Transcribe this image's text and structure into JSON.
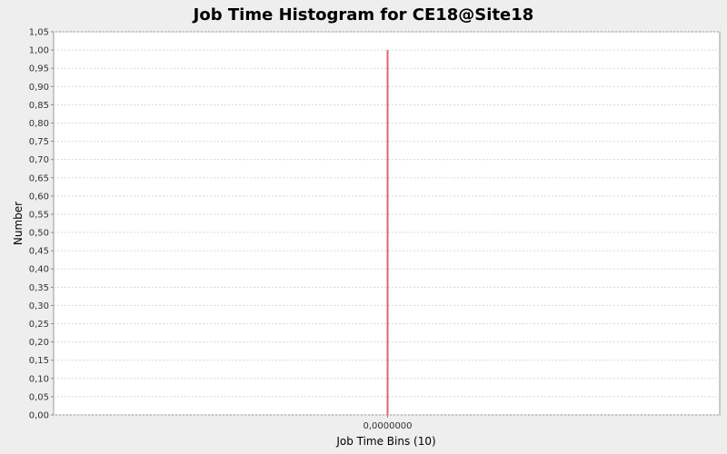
{
  "chart_data": {
    "type": "bar",
    "title": "Job Time Histogram for CE18@Site18",
    "xlabel": "Job Time Bins (10)",
    "ylabel": "Number",
    "categories": [
      "0,0000000"
    ],
    "values": [
      1.0
    ],
    "ylim": [
      0,
      1.05
    ],
    "yticks": [
      "0,00",
      "0,05",
      "0,10",
      "0,15",
      "0,20",
      "0,25",
      "0,30",
      "0,35",
      "0,40",
      "0,45",
      "0,50",
      "0,55",
      "0,60",
      "0,65",
      "0,70",
      "0,75",
      "0,80",
      "0,85",
      "0,90",
      "0,95",
      "1,00",
      "1,05"
    ],
    "grid": true,
    "legend": "none",
    "colors": {
      "bar": "#e06666",
      "grid": "#d8d8d8",
      "plot_bg": "#ffffff",
      "page_bg": "#eeeeee"
    }
  }
}
